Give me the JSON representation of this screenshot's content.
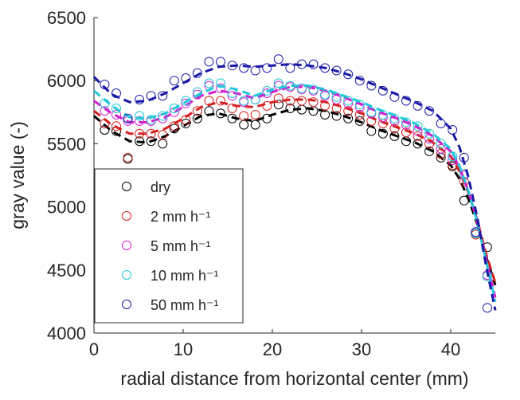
{
  "chart_data": {
    "type": "scatter",
    "xlabel": "radial distance from horizontal center (mm)",
    "ylabel": "gray value (-)",
    "xlim": [
      0,
      45
    ],
    "ylim": [
      4000,
      6500
    ],
    "xticks": [
      0,
      10,
      20,
      30,
      40
    ],
    "yticks": [
      4000,
      4500,
      5000,
      5500,
      6000,
      6500
    ],
    "legend": "lower left",
    "x": [
      1.2,
      2.5,
      3.8,
      5.1,
      6.4,
      7.7,
      9.0,
      10.3,
      11.6,
      12.9,
      14.2,
      15.5,
      16.8,
      18.1,
      19.4,
      20.7,
      22.0,
      23.3,
      24.6,
      25.9,
      27.2,
      28.5,
      29.8,
      31.1,
      32.4,
      33.7,
      35.0,
      36.3,
      37.6,
      38.9,
      40.2,
      41.5,
      42.8,
      44.1
    ],
    "fit_x": [
      0,
      2,
      4,
      6,
      8,
      10,
      12,
      14,
      16,
      18,
      20,
      22,
      24,
      26,
      28,
      30,
      32,
      34,
      36,
      38,
      40,
      41,
      42,
      43,
      44,
      45
    ],
    "series": [
      {
        "name": "dry",
        "color": "#000000",
        "values": [
          5610,
          5600,
          5380,
          5520,
          5520,
          5500,
          5620,
          5660,
          5700,
          5760,
          5740,
          5700,
          5650,
          5650,
          5700,
          5810,
          5780,
          5770,
          5760,
          5730,
          5720,
          5700,
          5680,
          5600,
          5580,
          5560,
          5520,
          5500,
          5440,
          5390,
          5320,
          5050,
          4790,
          4680
        ],
        "fit": [
          5720,
          5600,
          5520,
          5510,
          5560,
          5640,
          5720,
          5740,
          5700,
          5680,
          5730,
          5770,
          5780,
          5760,
          5720,
          5670,
          5610,
          5560,
          5510,
          5440,
          5330,
          5220,
          5060,
          4860,
          4600,
          4380
        ]
      },
      {
        "name": "2 mm h⁻¹",
        "color": "#d62020",
        "values": [
          5660,
          5640,
          5390,
          5580,
          5580,
          5570,
          5640,
          5690,
          5760,
          5840,
          5840,
          5780,
          5720,
          5730,
          5800,
          5860,
          5840,
          5840,
          5830,
          5800,
          5780,
          5760,
          5730,
          5680,
          5660,
          5620,
          5590,
          5560,
          5500,
          5420,
          5330,
          5200,
          4780,
          4450
        ],
        "fit": [
          5760,
          5650,
          5580,
          5580,
          5620,
          5700,
          5790,
          5830,
          5800,
          5790,
          5830,
          5850,
          5850,
          5830,
          5790,
          5740,
          5680,
          5630,
          5580,
          5510,
          5400,
          5280,
          5110,
          4890,
          4620,
          4400
        ]
      },
      {
        "name": "5 mm h⁻¹",
        "color": "#d020d0",
        "values": [
          5760,
          5730,
          5680,
          5680,
          5680,
          5700,
          5750,
          5820,
          5890,
          5960,
          5940,
          5880,
          5830,
          5850,
          5900,
          5960,
          5950,
          5930,
          5920,
          5880,
          5850,
          5820,
          5790,
          5740,
          5710,
          5680,
          5650,
          5600,
          5540,
          5460,
          5370,
          5250,
          4800,
          4460
        ],
        "fit": [
          5840,
          5740,
          5670,
          5670,
          5710,
          5790,
          5880,
          5920,
          5900,
          5860,
          5910,
          5950,
          5950,
          5920,
          5870,
          5810,
          5750,
          5700,
          5640,
          5560,
          5440,
          5310,
          5120,
          4880,
          4580,
          4280
        ]
      },
      {
        "name": "10 mm h⁻¹",
        "color": "#20c8d8",
        "values": [
          5820,
          5780,
          5700,
          5720,
          5690,
          5720,
          5780,
          5840,
          5910,
          5980,
          5980,
          5900,
          5840,
          5850,
          5920,
          5980,
          5960,
          5940,
          5930,
          5890,
          5870,
          5840,
          5810,
          5750,
          5730,
          5700,
          5670,
          5640,
          5580,
          5500,
          5400,
          5260,
          4790,
          4450
        ],
        "fit": [
          5920,
          5800,
          5710,
          5700,
          5740,
          5820,
          5900,
          5960,
          5930,
          5880,
          5930,
          5960,
          5960,
          5930,
          5880,
          5830,
          5770,
          5720,
          5660,
          5580,
          5460,
          5320,
          5120,
          4870,
          4560,
          4250
        ]
      },
      {
        "name": "50 mm h⁻¹",
        "color": "#1a1aa8",
        "values": [
          5970,
          5900,
          5700,
          5850,
          5880,
          5880,
          6000,
          6020,
          6060,
          6150,
          6150,
          6120,
          6100,
          6080,
          6100,
          6170,
          6100,
          6130,
          6130,
          6100,
          6080,
          6050,
          6000,
          5960,
          5920,
          5870,
          5840,
          5800,
          5760,
          5660,
          5610,
          5390,
          4800,
          4200
        ],
        "fit": [
          6030,
          5890,
          5830,
          5840,
          5900,
          5980,
          6060,
          6110,
          6120,
          6110,
          6120,
          6130,
          6120,
          6100,
          6060,
          6010,
          5950,
          5890,
          5830,
          5760,
          5620,
          5470,
          5230,
          4910,
          4520,
          4180
        ]
      }
    ]
  }
}
